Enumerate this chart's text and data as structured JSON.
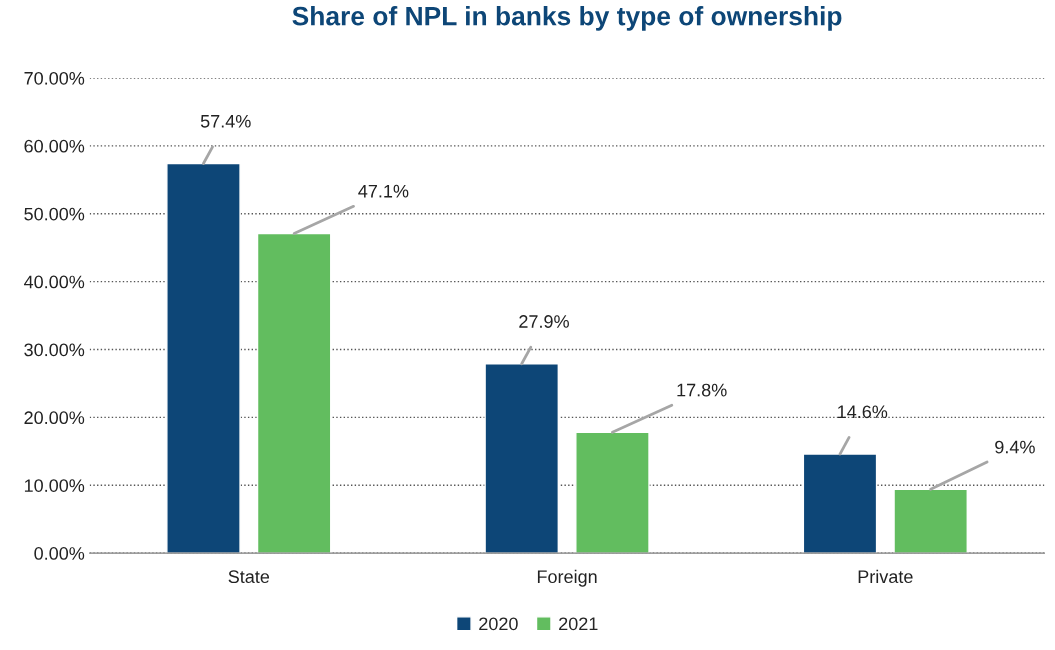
{
  "chart_data": {
    "type": "bar",
    "title": "Share of NPL in banks by type of ownership",
    "categories": [
      "State",
      "Foreign",
      "Private"
    ],
    "series": [
      {
        "name": "2020",
        "color": "#0d4677",
        "values": [
          57.4,
          27.9,
          14.6
        ],
        "value_labels": [
          "57.4%",
          "27.9%",
          "14.6%"
        ]
      },
      {
        "name": "2021",
        "color": "#62bd5f",
        "values": [
          47.1,
          17.8,
          9.4
        ],
        "value_labels": [
          "47.1%",
          "17.8%",
          "9.4%"
        ]
      }
    ],
    "ylim": [
      0,
      70
    ],
    "yticks": [
      {
        "value": 0,
        "label": "0.00%"
      },
      {
        "value": 10,
        "label": "10.00%"
      },
      {
        "value": 20,
        "label": "20.00%"
      },
      {
        "value": 30,
        "label": "30.00%"
      },
      {
        "value": 40,
        "label": "40.00%"
      },
      {
        "value": 50,
        "label": "50.00%"
      },
      {
        "value": 60,
        "label": "60.00%"
      },
      {
        "value": 70,
        "label": "70.00%"
      }
    ],
    "grid": "y",
    "legend": "bottom"
  }
}
